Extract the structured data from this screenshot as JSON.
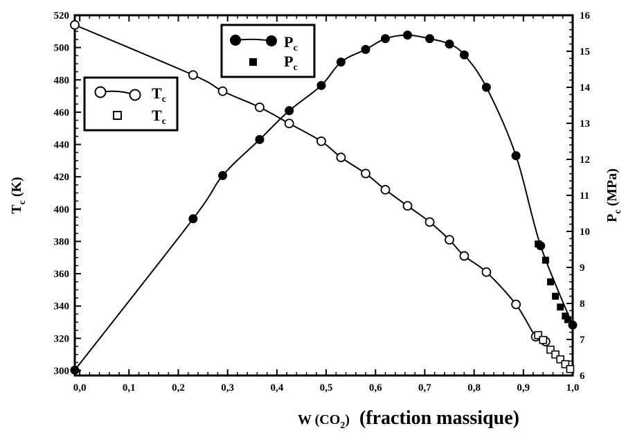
{
  "chart_data": {
    "type": "scatter",
    "xlabel": {
      "main": "W (CO",
      "sub": "2",
      "close": ")",
      "suffix": "(fraction massique)"
    },
    "ylabel_left": {
      "main": "T",
      "sub": "c",
      "unit": " (K)"
    },
    "ylabel_right": {
      "main": "P",
      "sub": "c",
      "unit": " (MPa)"
    },
    "xlim": [
      -0.01,
      1.0
    ],
    "ylim_left": [
      297,
      520
    ],
    "ylim_right": [
      6.0,
      16.0
    ],
    "x_ticks": [
      "0,0",
      "0,1",
      "0,2",
      "0,3",
      "0,4",
      "0,5",
      "0,6",
      "0,7",
      "0,8",
      "0,9",
      "1,0"
    ],
    "x_tick_values": [
      0.0,
      0.1,
      0.2,
      0.3,
      0.4,
      0.5,
      0.6,
      0.7,
      0.8,
      0.9,
      1.0
    ],
    "y_left_ticks": [
      300,
      320,
      340,
      360,
      380,
      400,
      420,
      440,
      460,
      480,
      500,
      520
    ],
    "y_right_ticks": [
      6,
      7,
      8,
      9,
      10,
      11,
      12,
      13,
      14,
      15,
      16
    ],
    "legend_pc": {
      "position": "top-center",
      "entries": [
        {
          "label": "P",
          "sub": "c",
          "marker": "filled-circle-line"
        },
        {
          "label": "P",
          "sub": "c",
          "marker": "filled-square"
        }
      ]
    },
    "legend_tc": {
      "position": "upper-left",
      "entries": [
        {
          "label": "T",
          "sub": "c",
          "marker": "open-circle-line"
        },
        {
          "label": "T",
          "sub": "c",
          "marker": "open-square"
        }
      ]
    },
    "series": [
      {
        "axis": "left",
        "marker": "open-circle",
        "x": [
          -0.01,
          0.23,
          0.29,
          0.365,
          0.425,
          0.49,
          0.53,
          0.58,
          0.62,
          0.665,
          0.71,
          0.75,
          0.78,
          0.825,
          0.885,
          0.925,
          0.945
        ],
        "y": [
          514,
          483,
          473,
          463,
          453,
          442,
          432,
          422,
          412,
          402,
          392,
          381,
          371,
          361,
          341,
          321,
          318
        ]
      },
      {
        "axis": "left",
        "marker": "open-square",
        "x": [
          0.93,
          0.94,
          0.955,
          0.965,
          0.975,
          0.985,
          0.995
        ],
        "y": [
          322,
          319,
          313,
          310,
          307,
          304,
          301
        ]
      },
      {
        "axis": "right",
        "marker": "filled-circle",
        "x": [
          -0.01,
          0.23,
          0.29,
          0.365,
          0.425,
          0.49,
          0.53,
          0.58,
          0.62,
          0.665,
          0.71,
          0.75,
          0.78,
          0.825,
          0.885,
          0.935,
          1.0
        ],
        "y": [
          6.15,
          10.35,
          11.55,
          12.55,
          13.35,
          14.05,
          14.7,
          15.05,
          15.35,
          15.45,
          15.35,
          15.2,
          14.9,
          14.0,
          12.1,
          9.6,
          7.4
        ]
      },
      {
        "axis": "right",
        "marker": "filled-square",
        "x": [
          0.93,
          0.945,
          0.955,
          0.965,
          0.975,
          0.985,
          0.99
        ],
        "y": [
          9.65,
          9.2,
          8.6,
          8.2,
          7.9,
          7.65,
          7.55
        ]
      }
    ]
  }
}
